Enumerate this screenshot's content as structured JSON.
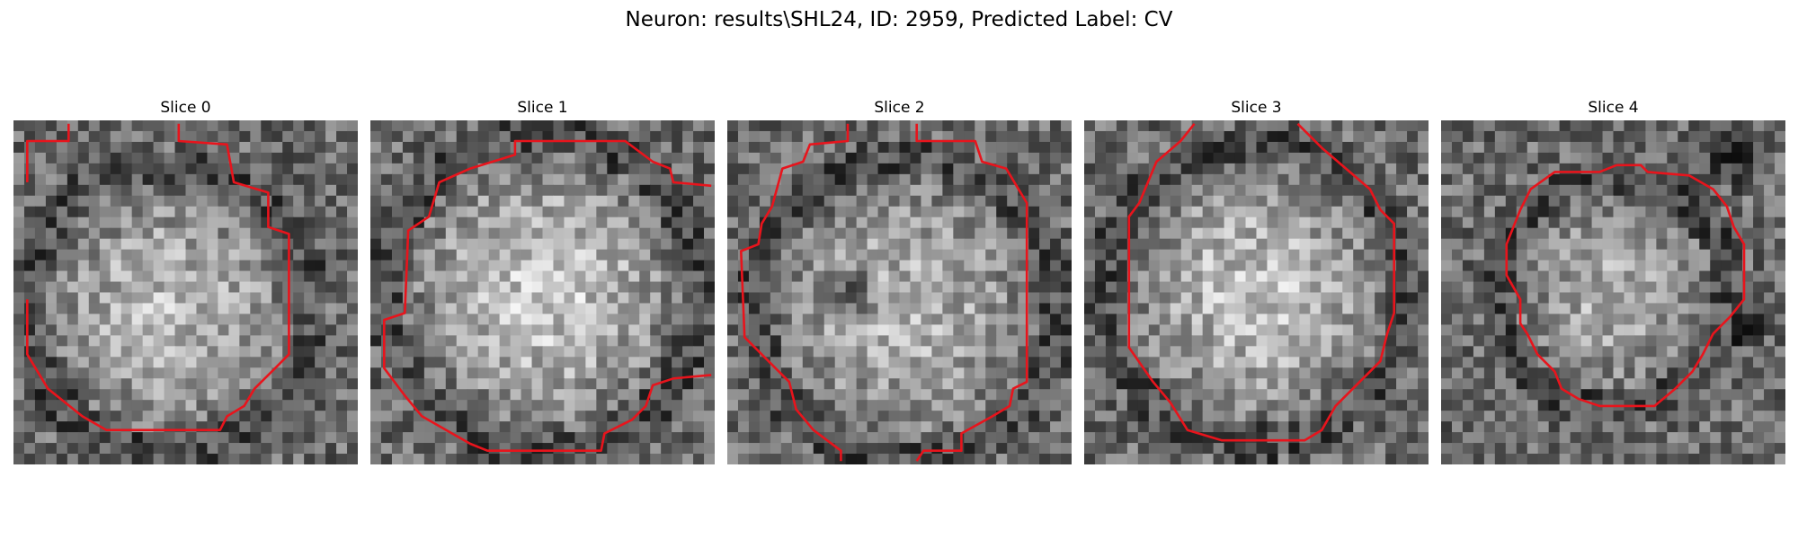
{
  "figure": {
    "title": "Neuron: results\\SHL24, ID: 2959, Predicted Label: CV"
  },
  "slices": [
    {
      "label": "Slice 0",
      "seed": 11,
      "blob": [
        0.45,
        0.55,
        0.38,
        0.3
      ],
      "dark": [],
      "contour": [
        [
          0.04,
          0.52
        ],
        [
          0.04,
          0.68
        ],
        [
          0.1,
          0.78
        ],
        [
          0.2,
          0.86
        ],
        [
          0.27,
          0.9
        ],
        [
          0.6,
          0.9
        ],
        [
          0.62,
          0.86
        ],
        [
          0.67,
          0.83
        ],
        [
          0.7,
          0.78
        ],
        [
          0.76,
          0.72
        ],
        [
          0.8,
          0.68
        ],
        [
          0.8,
          0.33
        ],
        [
          0.74,
          0.31
        ],
        [
          0.74,
          0.21
        ],
        [
          0.64,
          0.18
        ],
        [
          0.62,
          0.07
        ],
        [
          0.48,
          0.06
        ],
        [
          0.48,
          0.01
        ]
      ],
      "contour2": [
        [
          0.16,
          0.01
        ],
        [
          0.16,
          0.06
        ],
        [
          0.04,
          0.06
        ],
        [
          0.04,
          0.18
        ]
      ]
    },
    {
      "label": "Slice 1",
      "seed": 23,
      "blob": [
        0.5,
        0.5,
        0.42,
        0.36
      ],
      "dark": [],
      "contour": [
        [
          0.99,
          0.19
        ],
        [
          0.88,
          0.18
        ],
        [
          0.87,
          0.14
        ],
        [
          0.82,
          0.12
        ],
        [
          0.74,
          0.06
        ],
        [
          0.42,
          0.06
        ],
        [
          0.42,
          0.1
        ],
        [
          0.29,
          0.14
        ],
        [
          0.2,
          0.18
        ],
        [
          0.17,
          0.28
        ],
        [
          0.11,
          0.32
        ],
        [
          0.1,
          0.56
        ],
        [
          0.04,
          0.58
        ],
        [
          0.04,
          0.72
        ],
        [
          0.1,
          0.8
        ],
        [
          0.15,
          0.86
        ],
        [
          0.29,
          0.94
        ],
        [
          0.34,
          0.96
        ],
        [
          0.67,
          0.96
        ],
        [
          0.68,
          0.91
        ],
        [
          0.76,
          0.87
        ],
        [
          0.8,
          0.83
        ],
        [
          0.82,
          0.77
        ],
        [
          0.88,
          0.75
        ],
        [
          0.99,
          0.74
        ]
      ],
      "contour2": []
    },
    {
      "label": "Slice 2",
      "seed": 37,
      "blob": [
        0.52,
        0.55,
        0.4,
        0.28
      ],
      "dark": [
        [
          0.37,
          0.5,
          0.1
        ]
      ],
      "contour": [
        [
          0.33,
          0.99
        ],
        [
          0.33,
          0.96
        ],
        [
          0.25,
          0.9
        ],
        [
          0.2,
          0.84
        ],
        [
          0.18,
          0.76
        ],
        [
          0.14,
          0.72
        ],
        [
          0.05,
          0.63
        ],
        [
          0.04,
          0.38
        ],
        [
          0.09,
          0.36
        ],
        [
          0.1,
          0.3
        ],
        [
          0.13,
          0.25
        ],
        [
          0.16,
          0.14
        ],
        [
          0.22,
          0.12
        ],
        [
          0.24,
          0.07
        ],
        [
          0.35,
          0.06
        ],
        [
          0.35,
          0.01
        ]
      ],
      "contour2": [
        [
          0.55,
          0.01
        ],
        [
          0.55,
          0.06
        ],
        [
          0.72,
          0.06
        ],
        [
          0.74,
          0.12
        ],
        [
          0.81,
          0.14
        ],
        [
          0.84,
          0.19
        ],
        [
          0.87,
          0.24
        ],
        [
          0.87,
          0.76
        ],
        [
          0.83,
          0.78
        ],
        [
          0.82,
          0.83
        ],
        [
          0.77,
          0.86
        ],
        [
          0.68,
          0.91
        ],
        [
          0.68,
          0.96
        ],
        [
          0.57,
          0.96
        ],
        [
          0.55,
          0.99
        ]
      ]
    },
    {
      "label": "Slice 3",
      "seed": 41,
      "blob": [
        0.5,
        0.5,
        0.4,
        0.33
      ],
      "dark": [],
      "contour": [
        [
          0.32,
          0.01
        ],
        [
          0.28,
          0.06
        ],
        [
          0.21,
          0.12
        ],
        [
          0.16,
          0.24
        ],
        [
          0.13,
          0.28
        ],
        [
          0.13,
          0.66
        ],
        [
          0.2,
          0.76
        ],
        [
          0.25,
          0.82
        ],
        [
          0.3,
          0.9
        ],
        [
          0.4,
          0.93
        ],
        [
          0.64,
          0.93
        ],
        [
          0.69,
          0.9
        ],
        [
          0.73,
          0.83
        ],
        [
          0.8,
          0.76
        ],
        [
          0.86,
          0.7
        ],
        [
          0.88,
          0.62
        ],
        [
          0.9,
          0.56
        ],
        [
          0.9,
          0.3
        ],
        [
          0.86,
          0.26
        ],
        [
          0.83,
          0.2
        ],
        [
          0.76,
          0.14
        ],
        [
          0.69,
          0.08
        ],
        [
          0.62,
          0.01
        ]
      ],
      "contour2": []
    },
    {
      "label": "Slice 4",
      "seed": 53,
      "blob": [
        0.5,
        0.5,
        0.3,
        0.26
      ],
      "dark": [
        [
          0.85,
          0.1,
          0.12
        ],
        [
          0.9,
          0.6,
          0.08
        ]
      ],
      "contour": [
        [
          0.51,
          0.13
        ],
        [
          0.46,
          0.15
        ],
        [
          0.33,
          0.15
        ],
        [
          0.26,
          0.2
        ],
        [
          0.23,
          0.26
        ],
        [
          0.21,
          0.31
        ],
        [
          0.19,
          0.36
        ],
        [
          0.19,
          0.45
        ],
        [
          0.23,
          0.52
        ],
        [
          0.23,
          0.59
        ],
        [
          0.25,
          0.62
        ],
        [
          0.28,
          0.68
        ],
        [
          0.33,
          0.73
        ],
        [
          0.35,
          0.78
        ],
        [
          0.4,
          0.81
        ],
        [
          0.46,
          0.83
        ],
        [
          0.62,
          0.83
        ],
        [
          0.68,
          0.78
        ],
        [
          0.73,
          0.73
        ],
        [
          0.76,
          0.68
        ],
        [
          0.79,
          0.62
        ],
        [
          0.84,
          0.57
        ],
        [
          0.88,
          0.52
        ],
        [
          0.88,
          0.36
        ],
        [
          0.85,
          0.31
        ],
        [
          0.83,
          0.25
        ],
        [
          0.79,
          0.2
        ],
        [
          0.72,
          0.16
        ],
        [
          0.6,
          0.15
        ],
        [
          0.58,
          0.13
        ],
        [
          0.51,
          0.13
        ]
      ],
      "contour2": []
    }
  ],
  "colors": {
    "contour": "#e8141c"
  }
}
